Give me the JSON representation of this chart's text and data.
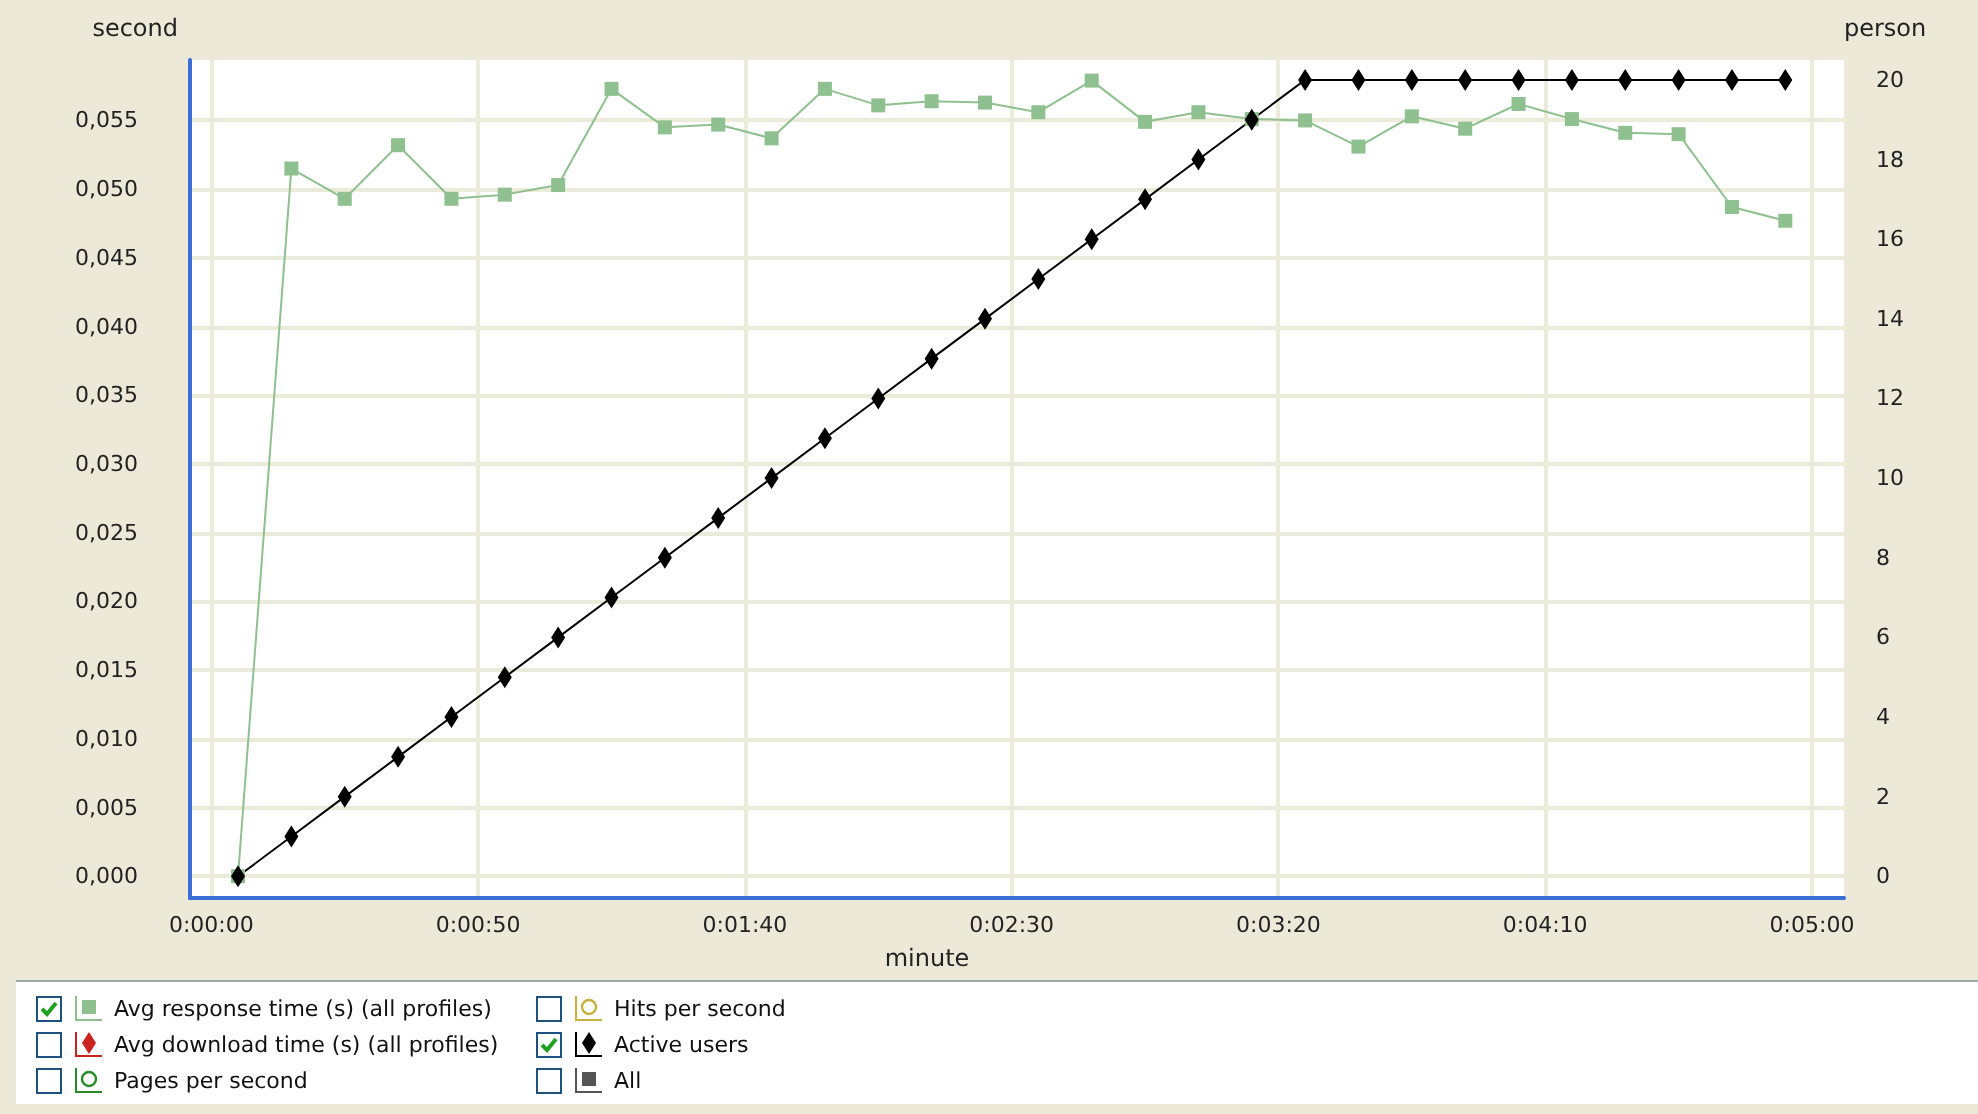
{
  "chart_data": {
    "type": "line",
    "xlabel": "minute",
    "ylabel": "second",
    "y2label": "person",
    "x": [
      5,
      15,
      25,
      35,
      45,
      55,
      65,
      75,
      85,
      95,
      105,
      115,
      125,
      135,
      145,
      155,
      165,
      175,
      185,
      195,
      205,
      215,
      225,
      235,
      245,
      255,
      265,
      275,
      285,
      295
    ],
    "xlim": [
      -4,
      306
    ],
    "xticks": [
      {
        "value": 0,
        "label": "0:00:00"
      },
      {
        "value": 50,
        "label": "0:00:50"
      },
      {
        "value": 100,
        "label": "0:01:40"
      },
      {
        "value": 150,
        "label": "0:02:30"
      },
      {
        "value": 200,
        "label": "0:03:20"
      },
      {
        "value": 250,
        "label": "0:04:10"
      },
      {
        "value": 300,
        "label": "0:05:00"
      }
    ],
    "ylim": [
      -0.0016,
      0.0594
    ],
    "yticks": [
      {
        "value": 0,
        "label": "0,000"
      },
      {
        "value": 0.005,
        "label": "0,005"
      },
      {
        "value": 0.01,
        "label": "0,010"
      },
      {
        "value": 0.015,
        "label": "0,015"
      },
      {
        "value": 0.02,
        "label": "0,020"
      },
      {
        "value": 0.025,
        "label": "0,025"
      },
      {
        "value": 0.03,
        "label": "0,030"
      },
      {
        "value": 0.035,
        "label": "0,035"
      },
      {
        "value": 0.04,
        "label": "0,040"
      },
      {
        "value": 0.045,
        "label": "0,045"
      },
      {
        "value": 0.05,
        "label": "0,050"
      },
      {
        "value": 0.055,
        "label": "0,055"
      }
    ],
    "y2lim": [
      -0.55,
      20.5
    ],
    "y2ticks": [
      0,
      2,
      4,
      6,
      8,
      10,
      12,
      14,
      16,
      18,
      20
    ],
    "grid": true,
    "legend": "bottom",
    "series": [
      {
        "name": "Avg response time (s) (all profiles)",
        "color": "#8fc08f",
        "marker": "square",
        "values": [
          0,
          0.0515,
          0.0493,
          0.0532,
          0.0493,
          0.0496,
          0.0503,
          0.0573,
          0.0545,
          0.0547,
          0.0537,
          0.0573,
          0.0561,
          0.0564,
          0.0563,
          0.0556,
          0.0579,
          0.0549,
          0.0556,
          0.0551,
          0.055,
          0.0531,
          0.0553,
          0.0544,
          0.0562,
          0.0551,
          0.0541,
          0.054,
          0.0487,
          0.0477
        ]
      },
      {
        "name": "Avg download time (s) (all profiles)",
        "color": "#cc2222",
        "marker": "diamond",
        "values": [
          null,
          null,
          null,
          null,
          null,
          null,
          null,
          null,
          null,
          null,
          null,
          null,
          null,
          null,
          null,
          null,
          null,
          null,
          null,
          null,
          null,
          null,
          null,
          null,
          null,
          null,
          null,
          null,
          null,
          null
        ]
      },
      {
        "name": "Pages per second",
        "color": "#2a8a2a",
        "marker": "circle",
        "values": [
          null,
          null,
          null,
          null,
          null,
          null,
          null,
          null,
          null,
          null,
          null,
          null,
          null,
          null,
          null,
          null,
          null,
          null,
          null,
          null,
          null,
          null,
          null,
          null,
          null,
          null,
          null,
          null,
          null,
          null
        ]
      },
      {
        "name": "Hits per second",
        "color": "#c8b040",
        "marker": "circle",
        "values": [
          null,
          null,
          null,
          null,
          null,
          null,
          null,
          null,
          null,
          null,
          null,
          null,
          null,
          null,
          null,
          null,
          null,
          null,
          null,
          null,
          null,
          null,
          null,
          null,
          null,
          null,
          null,
          null,
          null,
          null
        ]
      },
      {
        "name": "Active users",
        "color": "#000000",
        "marker": "diamond",
        "axis": "y2",
        "values": [
          0,
          1,
          2,
          3,
          4,
          5,
          6,
          7,
          8,
          9,
          10,
          11,
          12,
          13,
          14,
          15,
          16,
          17,
          18,
          19,
          20,
          20,
          20,
          20,
          20,
          20,
          20,
          20,
          20,
          20
        ]
      },
      {
        "name": "All",
        "color": "#555555",
        "marker": "square",
        "values": [
          null,
          null,
          null,
          null,
          null,
          null,
          null,
          null,
          null,
          null,
          null,
          null,
          null,
          null,
          null,
          null,
          null,
          null,
          null,
          null,
          null,
          null,
          null,
          null,
          null,
          null,
          null,
          null,
          null,
          null
        ]
      }
    ]
  }
}
